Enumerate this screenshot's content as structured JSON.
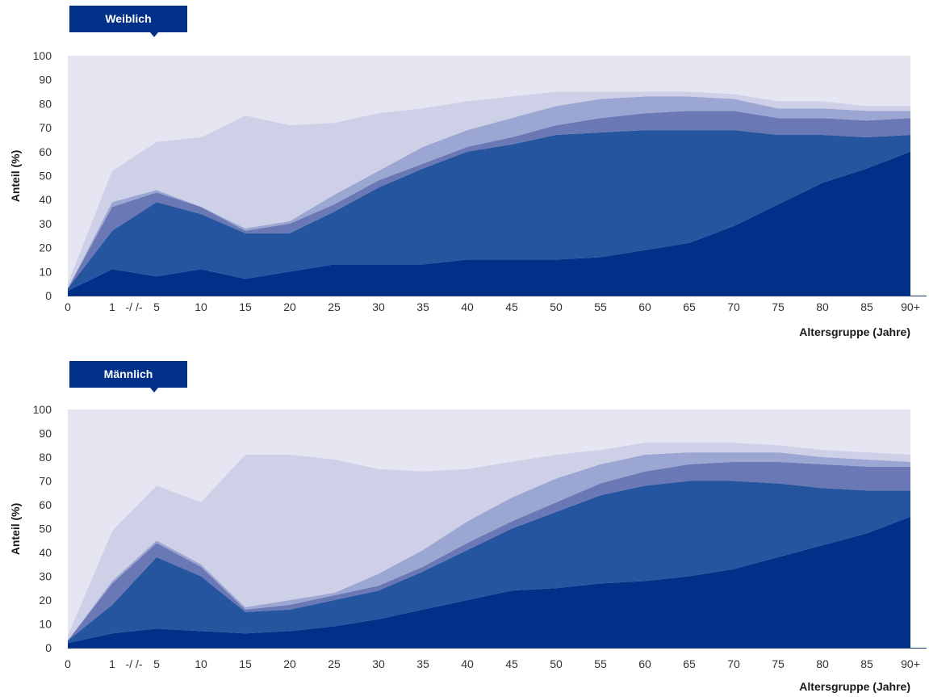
{
  "chart_data": [
    {
      "type": "area",
      "title": "Weiblich",
      "xlabel": "Altersgruppe (Jahre)",
      "ylabel": "Anteil (%)",
      "ylim": [
        0,
        100
      ],
      "yticks": [
        "0",
        "10",
        "20",
        "30",
        "40",
        "50",
        "60",
        "70",
        "80",
        "90",
        "100"
      ],
      "categories": [
        "0",
        "1",
        "5",
        "10",
        "15",
        "20",
        "25",
        "30",
        "35",
        "40",
        "45",
        "50",
        "55",
        "60",
        "65",
        "70",
        "75",
        "80",
        "85",
        "90+"
      ],
      "axis_break_label": "-/ /-",
      "stacked": true,
      "colors": [
        "#003087",
        "#24559e",
        "#6a79b5",
        "#9ca6d2",
        "#cdd0e7"
      ],
      "background_color": "#e6e5f2",
      "series": [
        {
          "values": [
            2,
            11,
            8,
            11,
            7,
            10,
            13,
            13,
            13,
            15,
            15,
            15,
            16,
            19,
            22,
            29,
            38,
            47,
            53,
            60
          ]
        },
        {
          "values": [
            1,
            16,
            31,
            23,
            19,
            16,
            22,
            32,
            40,
            45,
            48,
            52,
            52,
            50,
            47,
            40,
            29,
            20,
            13,
            7
          ]
        },
        {
          "values": [
            0,
            10,
            4,
            3,
            1,
            4,
            3,
            3,
            2,
            2,
            3,
            4,
            6,
            7,
            8,
            8,
            7,
            7,
            7,
            7
          ]
        },
        {
          "values": [
            0,
            2,
            1,
            0,
            1,
            1,
            4,
            4,
            7,
            7,
            8,
            8,
            8,
            7,
            6,
            5,
            4,
            4,
            4,
            3
          ]
        },
        {
          "values": [
            2,
            13,
            20,
            29,
            47,
            40,
            30,
            24,
            16,
            12,
            9,
            6,
            3,
            2,
            2,
            2,
            3,
            3,
            2,
            2
          ]
        }
      ]
    },
    {
      "type": "area",
      "title": "Männlich",
      "xlabel": "Altersgruppe (Jahre)",
      "ylabel": "Anteil (%)",
      "ylim": [
        0,
        100
      ],
      "yticks": [
        "0",
        "10",
        "20",
        "30",
        "40",
        "50",
        "60",
        "70",
        "80",
        "90",
        "100"
      ],
      "categories": [
        "0",
        "1",
        "5",
        "10",
        "15",
        "20",
        "25",
        "30",
        "35",
        "40",
        "45",
        "50",
        "55",
        "60",
        "65",
        "70",
        "75",
        "80",
        "85",
        "90+"
      ],
      "axis_break_label": "-/ /-",
      "stacked": true,
      "colors": [
        "#003087",
        "#24559e",
        "#6a79b5",
        "#9ca6d2",
        "#cdd0e7"
      ],
      "background_color": "#e6e5f2",
      "series": [
        {
          "values": [
            2,
            6,
            8,
            7,
            6,
            7,
            9,
            12,
            16,
            20,
            24,
            25,
            27,
            28,
            30,
            33,
            38,
            43,
            48,
            55
          ]
        },
        {
          "values": [
            1,
            12,
            30,
            23,
            9,
            9,
            11,
            12,
            16,
            21,
            26,
            32,
            37,
            40,
            40,
            37,
            31,
            24,
            18,
            11
          ]
        },
        {
          "values": [
            0,
            9,
            6,
            4,
            1,
            2,
            2,
            2,
            2,
            3,
            3,
            4,
            5,
            6,
            7,
            8,
            9,
            10,
            10,
            10
          ]
        },
        {
          "values": [
            0,
            1,
            1,
            1,
            1,
            2,
            1,
            5,
            7,
            9,
            10,
            10,
            8,
            7,
            5,
            4,
            4,
            3,
            3,
            2
          ]
        },
        {
          "values": [
            2,
            21,
            23,
            26,
            64,
            61,
            56,
            44,
            33,
            22,
            15,
            10,
            6,
            5,
            4,
            4,
            3,
            3,
            3,
            3
          ]
        }
      ]
    }
  ]
}
